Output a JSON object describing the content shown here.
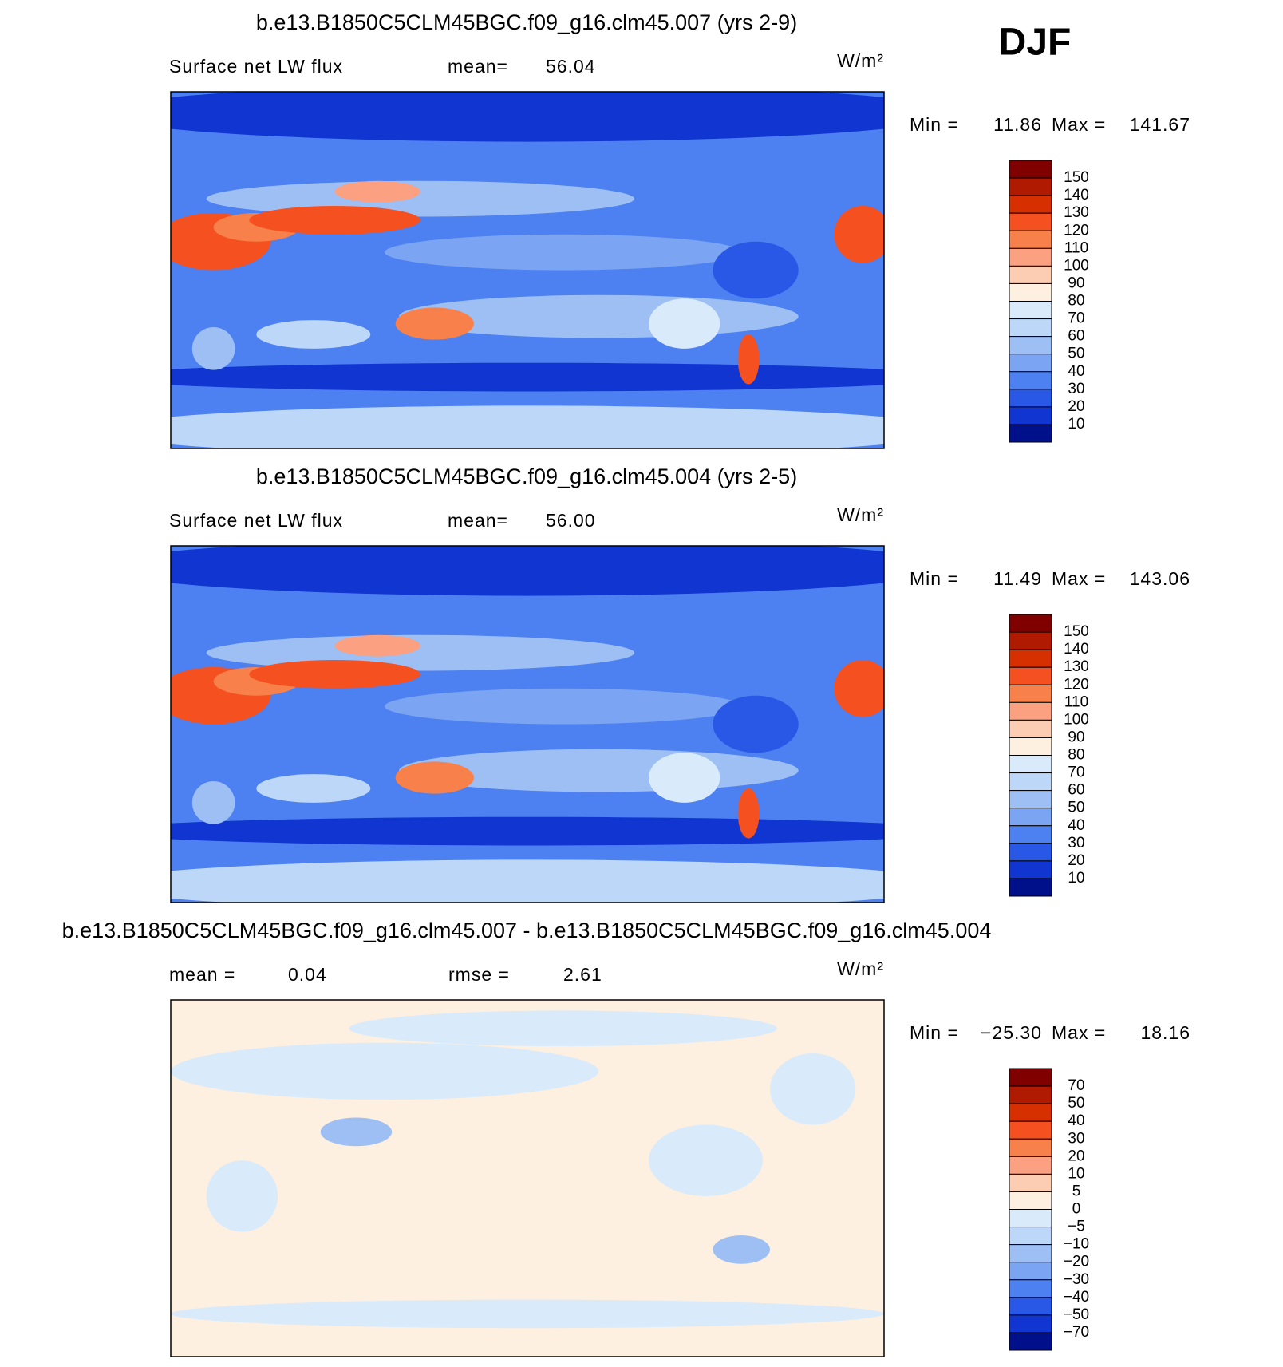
{
  "season": "DJF",
  "panels": [
    {
      "title": "b.e13.B1850C5CLM45BGC.f09_g16.clm45.007 (yrs 2-9)",
      "variable": "Surface net LW flux",
      "stats": [
        {
          "label": "mean=",
          "value": "56.04"
        }
      ],
      "units": "W/m²",
      "min_label": "Min =",
      "min": "11.86",
      "max_label": "Max =",
      "max": "141.67",
      "levels": [
        "150",
        "140",
        "130",
        "120",
        "110",
        "100",
        "90",
        "80",
        "70",
        "60",
        "50",
        "40",
        "30",
        "20",
        "10"
      ],
      "colors": [
        "#800000",
        "#b01a00",
        "#d63000",
        "#f55020",
        "#f8804a",
        "#fba080",
        "#fdcdb3",
        "#fdf0e1",
        "#d9eafb",
        "#bcd7f8",
        "#9dbff4",
        "#7ba5f2",
        "#4d80f0",
        "#2a58e6",
        "#1035d0",
        "#00108a"
      ]
    },
    {
      "title": "b.e13.B1850C5CLM45BGC.f09_g16.clm45.004 (yrs 2-5)",
      "variable": "Surface net LW flux",
      "stats": [
        {
          "label": "mean=",
          "value": "56.00"
        }
      ],
      "units": "W/m²",
      "min_label": "Min =",
      "min": "11.49",
      "max_label": "Max =",
      "max": "143.06",
      "levels": [
        "150",
        "140",
        "130",
        "120",
        "110",
        "100",
        "90",
        "80",
        "70",
        "60",
        "50",
        "40",
        "30",
        "20",
        "10"
      ],
      "colors": [
        "#800000",
        "#b01a00",
        "#d63000",
        "#f55020",
        "#f8804a",
        "#fba080",
        "#fdcdb3",
        "#fdf0e1",
        "#d9eafb",
        "#bcd7f8",
        "#9dbff4",
        "#7ba5f2",
        "#4d80f0",
        "#2a58e6",
        "#1035d0",
        "#00108a"
      ]
    },
    {
      "title": "b.e13.B1850C5CLM45BGC.f09_g16.clm45.007 - b.e13.B1850C5CLM45BGC.f09_g16.clm45.004",
      "stats": [
        {
          "label": "mean =",
          "value": "0.04"
        },
        {
          "label": "rmse =",
          "value": "2.61"
        }
      ],
      "units": "W/m²",
      "min_label": "Min =",
      "min": "−25.30",
      "max_label": "Max =",
      "max": "18.16",
      "levels": [
        "70",
        "50",
        "40",
        "30",
        "20",
        "10",
        "5",
        "0",
        "−5",
        "−10",
        "−20",
        "−30",
        "−40",
        "−50",
        "−70"
      ],
      "colors": [
        "#800000",
        "#b01a00",
        "#d63000",
        "#f55020",
        "#f8804a",
        "#fba080",
        "#fdcdb3",
        "#fdf0e1",
        "#d9eafb",
        "#bcd7f8",
        "#9dbff4",
        "#7ba5f2",
        "#4d80f0",
        "#2a58e6",
        "#1035d0",
        "#00108a"
      ]
    }
  ]
}
